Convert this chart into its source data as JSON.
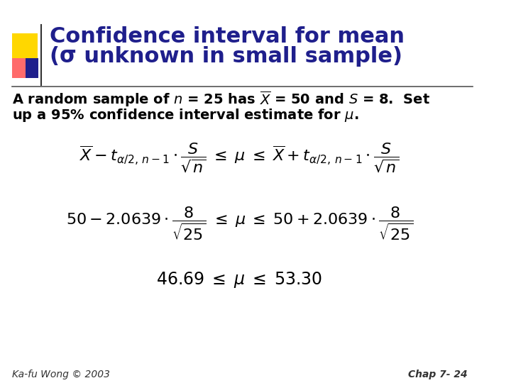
{
  "title_line1": "Confidence interval for mean",
  "title_line2": "(σ unknown in small sample)",
  "title_color": "#1F1F8C",
  "title_fontsize": 22,
  "bg_color": "#FFFFFF",
  "accent_colors": {
    "yellow": "#FFD700",
    "red": "#FF6B6B",
    "blue": "#1F1F8C"
  },
  "body_text_color": "#000000",
  "footer_left": "Ka-fu Wong © 2003",
  "footer_right": "Chap 7- 24",
  "footer_fontsize": 10,
  "body_fontsize": 14
}
